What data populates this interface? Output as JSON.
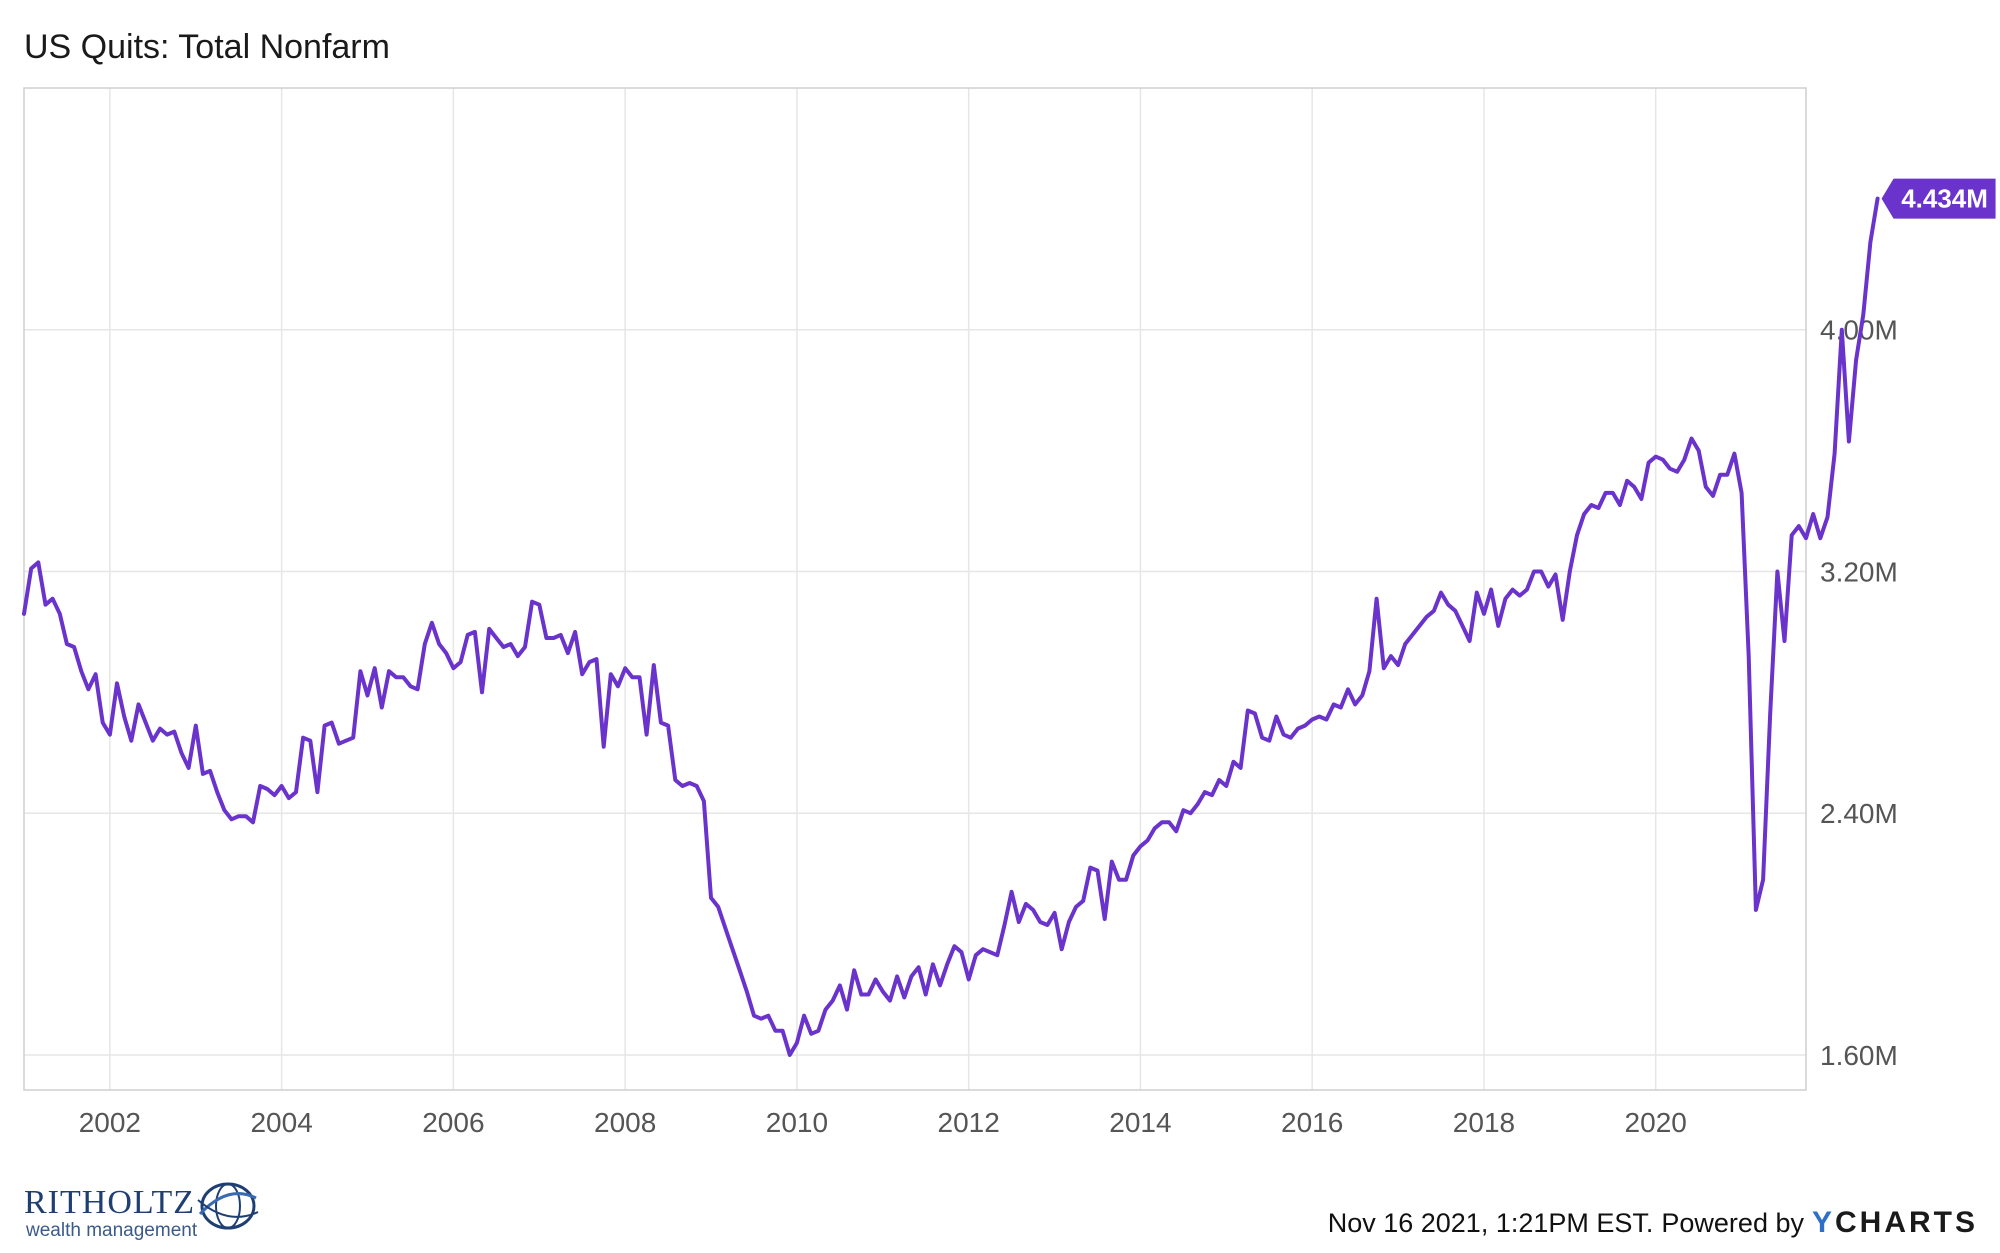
{
  "title": "US Quits: Total Nonfarm",
  "footer": {
    "timestamp": "Nov 16 2021, 1:21PM EST.",
    "powered_by": "Powered by",
    "brand_y": "Y",
    "brand_rest": "CHARTS"
  },
  "logo": {
    "name": "RITHOLTZ",
    "sub": "wealth management"
  },
  "colors": {
    "line": "#6a33cc",
    "label_bg": "#6a33cc",
    "grid": "#e6e6e6"
  },
  "chart_data": {
    "type": "line",
    "title": "US Quits: Total Nonfarm",
    "xlim": [
      2001.0,
      2021.75
    ],
    "ylim": [
      1.484,
      4.8
    ],
    "x_ticks": [
      2002,
      2004,
      2006,
      2008,
      2010,
      2012,
      2014,
      2016,
      2018,
      2020
    ],
    "x_tick_labels": [
      "2002",
      "2004",
      "2006",
      "2008",
      "2010",
      "2012",
      "2014",
      "2016",
      "2018",
      "2020"
    ],
    "y_ticks": [
      1.6,
      2.4,
      3.2,
      4.0
    ],
    "y_tick_labels": [
      "1.60M",
      "2.40M",
      "3.20M",
      "4.00M"
    ],
    "last_value_label": "4.434M",
    "grid": true,
    "series": [
      {
        "start_year": 2001.0,
        "step_months": 1,
        "values": [
          3.06,
          3.21,
          3.23,
          3.09,
          3.11,
          3.06,
          2.96,
          2.95,
          2.87,
          2.81,
          2.86,
          2.7,
          2.66,
          2.83,
          2.72,
          2.64,
          2.76,
          2.7,
          2.64,
          2.68,
          2.66,
          2.67,
          2.6,
          2.55,
          2.69,
          2.53,
          2.54,
          2.47,
          2.41,
          2.38,
          2.39,
          2.39,
          2.37,
          2.49,
          2.48,
          2.46,
          2.49,
          2.45,
          2.47,
          2.65,
          2.64,
          2.47,
          2.69,
          2.7,
          2.63,
          2.64,
          2.65,
          2.87,
          2.79,
          2.88,
          2.75,
          2.87,
          2.85,
          2.85,
          2.82,
          2.81,
          2.96,
          3.03,
          2.96,
          2.93,
          2.88,
          2.9,
          2.99,
          3.0,
          2.8,
          3.01,
          2.98,
          2.95,
          2.96,
          2.92,
          2.95,
          3.1,
          3.09,
          2.98,
          2.98,
          2.99,
          2.93,
          3.0,
          2.86,
          2.9,
          2.91,
          2.62,
          2.86,
          2.82,
          2.88,
          2.85,
          2.85,
          2.66,
          2.89,
          2.7,
          2.69,
          2.51,
          2.49,
          2.5,
          2.49,
          2.44,
          2.12,
          2.09,
          2.02,
          1.95,
          1.88,
          1.81,
          1.73,
          1.72,
          1.73,
          1.68,
          1.68,
          1.6,
          1.64,
          1.73,
          1.67,
          1.68,
          1.75,
          1.78,
          1.83,
          1.75,
          1.88,
          1.8,
          1.8,
          1.85,
          1.81,
          1.78,
          1.86,
          1.79,
          1.86,
          1.89,
          1.8,
          1.9,
          1.83,
          1.9,
          1.96,
          1.94,
          1.85,
          1.93,
          1.95,
          1.94,
          1.93,
          2.03,
          2.14,
          2.04,
          2.1,
          2.08,
          2.04,
          2.03,
          2.07,
          1.95,
          2.04,
          2.09,
          2.11,
          2.22,
          2.21,
          2.05,
          2.24,
          2.18,
          2.18,
          2.26,
          2.29,
          2.31,
          2.35,
          2.37,
          2.37,
          2.34,
          2.41,
          2.4,
          2.43,
          2.47,
          2.46,
          2.51,
          2.49,
          2.57,
          2.55,
          2.74,
          2.73,
          2.65,
          2.64,
          2.72,
          2.66,
          2.65,
          2.68,
          2.69,
          2.71,
          2.72,
          2.71,
          2.76,
          2.75,
          2.81,
          2.76,
          2.79,
          2.87,
          3.11,
          2.88,
          2.92,
          2.89,
          2.96,
          2.99,
          3.02,
          3.05,
          3.07,
          3.13,
          3.09,
          3.07,
          3.02,
          2.97,
          3.13,
          3.06,
          3.14,
          3.02,
          3.11,
          3.14,
          3.12,
          3.14,
          3.2,
          3.2,
          3.15,
          3.19,
          3.04,
          3.2,
          3.32,
          3.39,
          3.42,
          3.41,
          3.46,
          3.46,
          3.42,
          3.5,
          3.48,
          3.44,
          3.56,
          3.58,
          3.57,
          3.54,
          3.53,
          3.57,
          3.64,
          3.6,
          3.48,
          3.45,
          3.52,
          3.52,
          3.59,
          3.46,
          2.92,
          2.08,
          2.18,
          2.73,
          3.2,
          2.97,
          3.32,
          3.35,
          3.31,
          3.39,
          3.31,
          3.38,
          3.59,
          4.0,
          3.63,
          3.9,
          4.05,
          4.29,
          4.434
        ]
      }
    ]
  }
}
